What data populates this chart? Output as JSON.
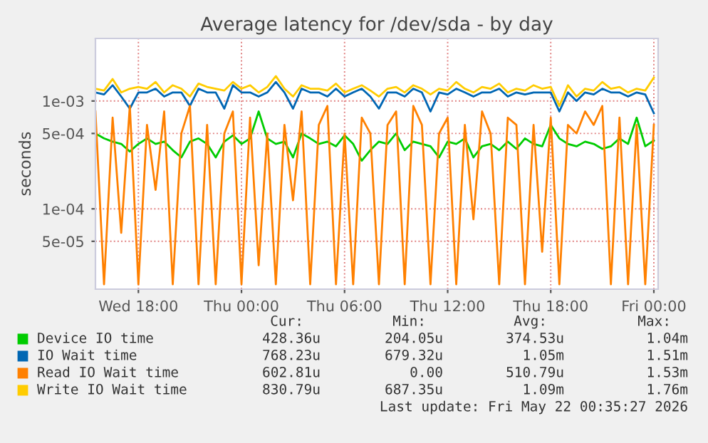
{
  "chart_data": {
    "type": "line",
    "title": "Average latency for /dev/sda - by day",
    "ylabel": "seconds",
    "x": [
      "2026-05-20T15:30",
      "2026-05-20T16:00",
      "2026-05-20T16:30",
      "2026-05-20T17:00",
      "2026-05-20T17:30",
      "2026-05-20T18:00",
      "2026-05-20T18:30",
      "2026-05-20T19:00",
      "2026-05-20T19:30",
      "2026-05-20T20:00",
      "2026-05-20T20:30",
      "2026-05-20T21:00",
      "2026-05-20T21:30",
      "2026-05-20T22:00",
      "2026-05-20T22:30",
      "2026-05-20T23:00",
      "2026-05-20T23:30",
      "2026-05-21T00:00",
      "2026-05-21T00:30",
      "2026-05-21T01:00",
      "2026-05-21T01:30",
      "2026-05-21T02:00",
      "2026-05-21T02:30",
      "2026-05-21T03:00",
      "2026-05-21T03:30",
      "2026-05-21T04:00",
      "2026-05-21T04:30",
      "2026-05-21T05:00",
      "2026-05-21T05:30",
      "2026-05-21T06:00",
      "2026-05-21T06:30",
      "2026-05-21T07:00",
      "2026-05-21T07:30",
      "2026-05-21T08:00",
      "2026-05-21T08:30",
      "2026-05-21T09:00",
      "2026-05-21T09:30",
      "2026-05-21T10:00",
      "2026-05-21T10:30",
      "2026-05-21T11:00",
      "2026-05-21T11:30",
      "2026-05-21T12:00",
      "2026-05-21T12:30",
      "2026-05-21T13:00",
      "2026-05-21T13:30",
      "2026-05-21T14:00",
      "2026-05-21T14:30",
      "2026-05-21T15:00",
      "2026-05-21T15:30",
      "2026-05-21T16:00",
      "2026-05-21T16:30",
      "2026-05-21T17:00",
      "2026-05-21T17:30",
      "2026-05-21T18:00",
      "2026-05-21T18:30",
      "2026-05-21T19:00",
      "2026-05-21T19:30",
      "2026-05-21T20:00",
      "2026-05-21T20:30",
      "2026-05-21T21:00",
      "2026-05-21T21:30",
      "2026-05-21T22:00",
      "2026-05-21T22:30",
      "2026-05-21T23:00",
      "2026-05-21T23:30",
      "2026-05-22T00:00"
    ],
    "series": [
      {
        "name": "Device IO time",
        "color": "#00cc00",
        "values": [
          0.0005,
          0.00045,
          0.00042,
          0.0004,
          0.00034,
          0.0004,
          0.00045,
          0.0004,
          0.00042,
          0.00035,
          0.0003,
          0.00042,
          0.00045,
          0.0004,
          0.0003,
          0.00042,
          0.00048,
          0.0004,
          0.00045,
          0.0008,
          0.00045,
          0.0004,
          0.00042,
          0.0003,
          0.0005,
          0.00045,
          0.0004,
          0.00042,
          0.00038,
          0.00048,
          0.0004,
          0.00028,
          0.00035,
          0.00042,
          0.0004,
          0.0005,
          0.00035,
          0.00042,
          0.0004,
          0.00038,
          0.0003,
          0.00042,
          0.0004,
          0.00045,
          0.0003,
          0.00038,
          0.0004,
          0.00035,
          0.00042,
          0.00036,
          0.00045,
          0.0004,
          0.00038,
          0.0006,
          0.00045,
          0.0004,
          0.00038,
          0.00042,
          0.0004,
          0.00036,
          0.00038,
          0.00045,
          0.0004,
          0.0007,
          0.00038,
          0.00043
        ]
      },
      {
        "name": "IO Wait time",
        "color": "#0066b3",
        "values": [
          0.0012,
          0.00115,
          0.0014,
          0.0011,
          0.00085,
          0.0012,
          0.0012,
          0.0013,
          0.0011,
          0.0012,
          0.0012,
          0.0009,
          0.0013,
          0.0012,
          0.0012,
          0.00085,
          0.0014,
          0.0012,
          0.0012,
          0.0011,
          0.0012,
          0.0015,
          0.0012,
          0.00085,
          0.0013,
          0.0012,
          0.0012,
          0.0011,
          0.0013,
          0.0011,
          0.0012,
          0.0013,
          0.0011,
          0.00085,
          0.0012,
          0.0012,
          0.0011,
          0.0013,
          0.0012,
          0.0008,
          0.0012,
          0.00115,
          0.0013,
          0.0012,
          0.0011,
          0.0012,
          0.0012,
          0.0013,
          0.0011,
          0.0012,
          0.00115,
          0.0012,
          0.0012,
          0.0012,
          0.0008,
          0.0012,
          0.001,
          0.0012,
          0.00115,
          0.0013,
          0.0012,
          0.0012,
          0.0011,
          0.0012,
          0.00115,
          0.00077
        ]
      },
      {
        "name": "Read IO Wait time",
        "color": "#ff8000",
        "values": [
          0.0008,
          2e-05,
          0.0007,
          6e-05,
          0.0009,
          2e-05,
          0.0006,
          0.00015,
          0.0008,
          2e-05,
          0.0005,
          0.0009,
          2e-05,
          0.0006,
          2e-05,
          0.0005,
          0.0008,
          2e-05,
          0.0007,
          3e-05,
          0.0005,
          2e-05,
          0.0006,
          0.00012,
          0.0008,
          2e-05,
          0.0006,
          0.0009,
          2e-05,
          0.0005,
          2e-05,
          0.0007,
          0.0005,
          2e-05,
          0.0006,
          0.0008,
          2e-05,
          0.0009,
          0.0006,
          2e-05,
          0.0005,
          0.0007,
          2e-05,
          0.0006,
          8e-05,
          0.0008,
          0.0005,
          2e-05,
          0.0007,
          0.0006,
          2e-05,
          0.0006,
          4e-05,
          0.0007,
          2e-05,
          0.0006,
          0.0005,
          0.0008,
          0.0006,
          0.0009,
          2e-05,
          0.0007,
          2e-05,
          0.0006,
          2e-05,
          0.0006
        ]
      },
      {
        "name": "Write IO Wait time",
        "color": "#ffcc00",
        "values": [
          0.0013,
          0.00125,
          0.0016,
          0.0012,
          0.0013,
          0.00135,
          0.0013,
          0.0015,
          0.0012,
          0.0014,
          0.0013,
          0.0011,
          0.00145,
          0.00135,
          0.0013,
          0.00125,
          0.0015,
          0.0013,
          0.0014,
          0.0012,
          0.00135,
          0.0017,
          0.0013,
          0.0011,
          0.0014,
          0.0013,
          0.0013,
          0.00125,
          0.00145,
          0.0012,
          0.0013,
          0.0014,
          0.00125,
          0.0011,
          0.0013,
          0.00135,
          0.0012,
          0.0014,
          0.0013,
          0.00115,
          0.0013,
          0.00125,
          0.0015,
          0.0013,
          0.0012,
          0.00135,
          0.0013,
          0.00145,
          0.0012,
          0.0013,
          0.00125,
          0.0014,
          0.0013,
          0.00135,
          0.0009,
          0.0014,
          0.0011,
          0.0013,
          0.00125,
          0.0015,
          0.0013,
          0.00135,
          0.0012,
          0.0013,
          0.00125,
          0.00165
        ]
      }
    ],
    "log": "y",
    "ylim": [
      1.8e-05,
      0.0038
    ],
    "yticks": [
      {
        "value": 5e-05,
        "label": "5e-05"
      },
      {
        "value": 0.0001,
        "label": "1e-04"
      },
      {
        "value": 0.0005,
        "label": "5e-04"
      },
      {
        "value": 0.001,
        "label": "1e-03"
      }
    ],
    "xlim": [
      "2026-05-20T15:30",
      "2026-05-22T00:15"
    ],
    "xticks": [
      {
        "value": "2026-05-20T18:00",
        "label": "Wed 18:00"
      },
      {
        "value": "2026-05-21T00:00",
        "label": "Thu 00:00"
      },
      {
        "value": "2026-05-21T06:00",
        "label": "Thu 06:00"
      },
      {
        "value": "2026-05-21T12:00",
        "label": "Thu 12:00"
      },
      {
        "value": "2026-05-21T18:00",
        "label": "Thu 18:00"
      },
      {
        "value": "2026-05-22T00:00",
        "label": "Fri 00:00"
      }
    ],
    "grid": true,
    "legend": "bottom",
    "marker": "none",
    "line_style": "solid",
    "annotations": [
      "Cur:",
      "Min:",
      "Avg:",
      "Max:",
      "428.36u",
      "204.05u",
      "374.53u",
      "1.04m",
      "768.23u",
      "679.32u",
      "1.05m",
      "1.51m",
      "602.81u",
      "0.00",
      "510.79u",
      "1.53m",
      "830.79u",
      "687.35u",
      "1.09m",
      "1.76m",
      "Last update: Fri May 22 00:35:27 2026"
    ]
  }
}
